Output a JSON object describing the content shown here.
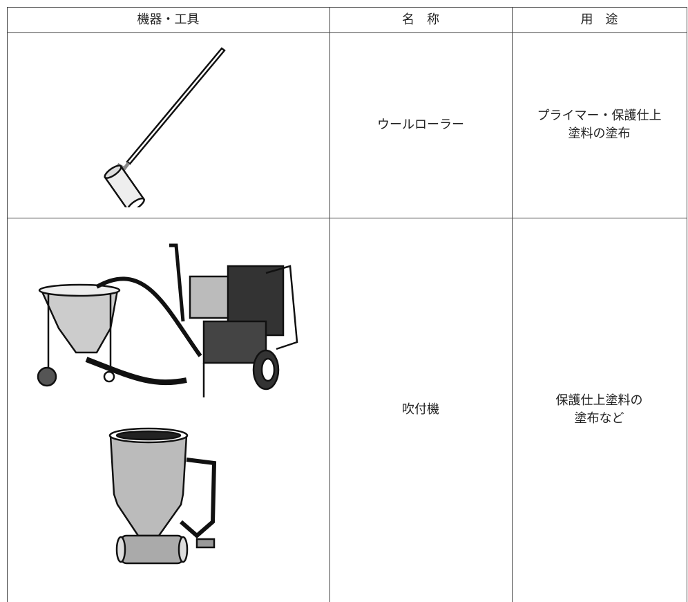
{
  "table": {
    "header": [
      "機器・工具",
      "名　称",
      "用　途"
    ],
    "rows": [
      {
        "name": "ウールローラー",
        "use": [
          "プライマー・保護仕上",
          "塗料の塗布"
        ]
      },
      {
        "name": "吹付機",
        "use": [
          "保護仕上塗料の",
          "塗布など"
        ]
      }
    ]
  }
}
